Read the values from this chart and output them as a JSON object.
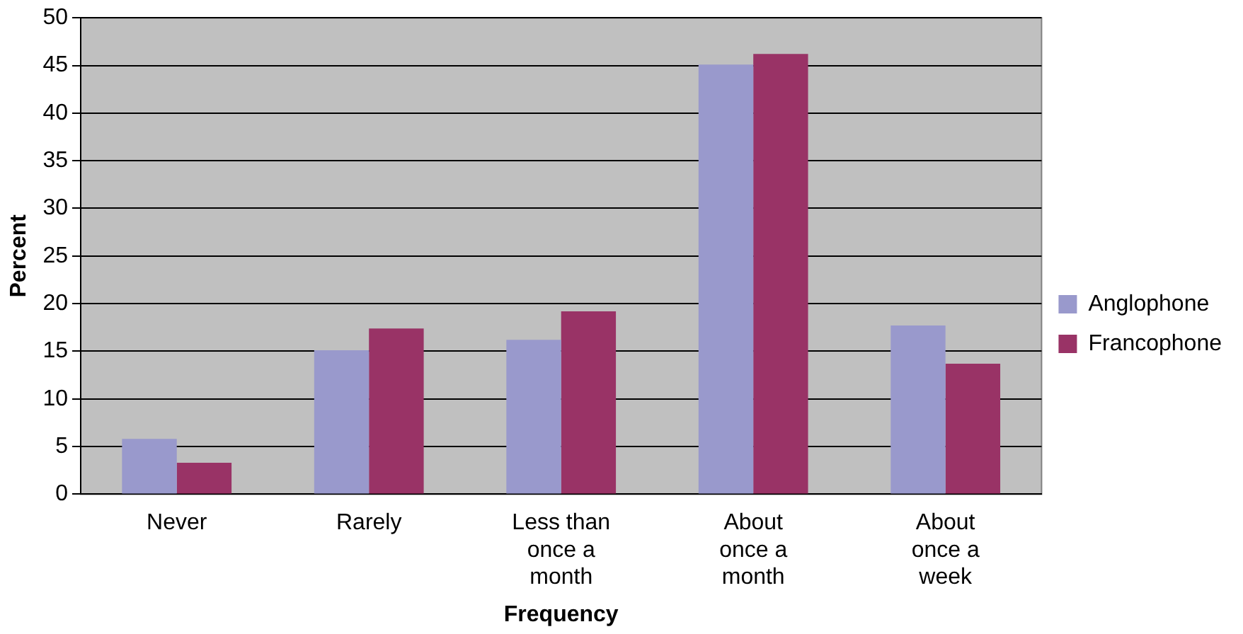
{
  "chart_data": {
    "type": "bar",
    "xlabel": "Frequency",
    "ylabel": "Percent",
    "categories": [
      "Never",
      "Rarely",
      "Less than once a month",
      "About once a month",
      "About once a week"
    ],
    "series": [
      {
        "name": "Anglophone",
        "color": "#9999cc",
        "values": [
          5.8,
          15.1,
          16.2,
          45.1,
          17.7
        ]
      },
      {
        "name": "Francophone",
        "color": "#993366",
        "values": [
          3.3,
          17.4,
          19.2,
          46.2,
          13.7
        ]
      }
    ],
    "ylim": [
      0,
      50
    ],
    "yticks": [
      0,
      5,
      10,
      15,
      20,
      25,
      30,
      35,
      40,
      45,
      50
    ],
    "grid": "y",
    "legend": "right"
  }
}
